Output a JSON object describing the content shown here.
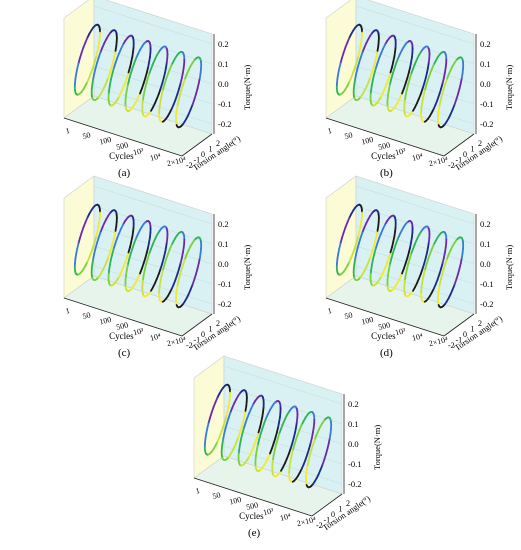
{
  "colors": {
    "back_wall_left": "#fbfbd6",
    "back_wall_right": "#d9f1f2",
    "floor": "#e7f4ec",
    "axis": "#222222",
    "loop_palette": [
      "#1b1b1b",
      "#1c2a8a",
      "#6b2aa8",
      "#3a7ad8",
      "#2fb35a",
      "#79d23a",
      "#c9e23a",
      "#f0ea30"
    ]
  },
  "chart_data": [
    {
      "type": "line",
      "panel_label": "(a)",
      "chart_subtype": "3d-hysteresis-loops",
      "xlabel": "Cycles",
      "ylabel": "Torsion angle(°)",
      "zlabel": "Torque(N·m)",
      "x_ticks": [
        "1",
        "50",
        "100",
        "500",
        "10³",
        "10⁴",
        "2×10⁴"
      ],
      "y_ticks": [
        "-2",
        "-1",
        "0",
        "1",
        "2"
      ],
      "z_ticks": [
        "-0.2",
        "-0.1",
        "0.0",
        "0.1",
        "0.2"
      ],
      "zlim": [
        -0.25,
        0.25
      ],
      "ylim": [
        -2,
        2
      ],
      "series": [
        {
          "x": "1",
          "torque_range": [
            -0.2,
            0.2
          ]
        },
        {
          "x": "50",
          "torque_range": [
            -0.2,
            0.2
          ]
        },
        {
          "x": "100",
          "torque_range": [
            -0.2,
            0.2
          ]
        },
        {
          "x": "500",
          "torque_range": [
            -0.2,
            0.2
          ]
        },
        {
          "x": "10³",
          "torque_range": [
            -0.2,
            0.2
          ]
        },
        {
          "x": "10⁴",
          "torque_range": [
            -0.2,
            0.2
          ]
        },
        {
          "x": "2×10⁴",
          "torque_range": [
            -0.2,
            0.2
          ]
        }
      ]
    },
    {
      "type": "line",
      "panel_label": "(b)",
      "chart_subtype": "3d-hysteresis-loops",
      "xlabel": "Cycles",
      "ylabel": "Torsion angle(°)",
      "zlabel": "Torque(N·m)",
      "x_ticks": [
        "1",
        "50",
        "100",
        "500",
        "10³",
        "10⁴",
        "2×10⁴"
      ],
      "y_ticks": [
        "-2",
        "-1",
        "0",
        "1",
        "2"
      ],
      "z_ticks": [
        "-0.2",
        "-0.1",
        "0.0",
        "0.1",
        "0.2"
      ],
      "zlim": [
        -0.25,
        0.25
      ],
      "ylim": [
        -2,
        2
      ],
      "series": [
        {
          "x": "1",
          "torque_range": [
            -0.2,
            0.2
          ]
        },
        {
          "x": "50",
          "torque_range": [
            -0.2,
            0.2
          ]
        },
        {
          "x": "100",
          "torque_range": [
            -0.2,
            0.2
          ]
        },
        {
          "x": "500",
          "torque_range": [
            -0.2,
            0.2
          ]
        },
        {
          "x": "10³",
          "torque_range": [
            -0.2,
            0.2
          ]
        },
        {
          "x": "10⁴",
          "torque_range": [
            -0.2,
            0.2
          ]
        },
        {
          "x": "2×10⁴",
          "torque_range": [
            -0.2,
            0.2
          ]
        }
      ]
    },
    {
      "type": "line",
      "panel_label": "(c)",
      "chart_subtype": "3d-hysteresis-loops",
      "xlabel": "Cycles",
      "ylabel": "Torsion angle(°)",
      "zlabel": "Torque(N·m)",
      "x_ticks": [
        "1",
        "50",
        "100",
        "500",
        "10³",
        "10⁴",
        "2×10⁴"
      ],
      "y_ticks": [
        "-2",
        "-1",
        "0",
        "1",
        "2"
      ],
      "z_ticks": [
        "-0.2",
        "-0.1",
        "0.0",
        "0.1",
        "0.2"
      ],
      "zlim": [
        -0.25,
        0.25
      ],
      "ylim": [
        -2,
        2
      ],
      "series": [
        {
          "x": "1",
          "torque_range": [
            -0.2,
            0.2
          ]
        },
        {
          "x": "50",
          "torque_range": [
            -0.2,
            0.2
          ]
        },
        {
          "x": "100",
          "torque_range": [
            -0.2,
            0.2
          ]
        },
        {
          "x": "500",
          "torque_range": [
            -0.2,
            0.2
          ]
        },
        {
          "x": "10³",
          "torque_range": [
            -0.2,
            0.2
          ]
        },
        {
          "x": "10⁴",
          "torque_range": [
            -0.2,
            0.2
          ]
        },
        {
          "x": "2×10⁴",
          "torque_range": [
            -0.2,
            0.2
          ]
        }
      ]
    },
    {
      "type": "line",
      "panel_label": "(d)",
      "chart_subtype": "3d-hysteresis-loops",
      "xlabel": "Cycles",
      "ylabel": "Torsion angle(°)",
      "zlabel": "Torque(N·m)",
      "x_ticks": [
        "1",
        "50",
        "100",
        "500",
        "10³",
        "10⁴",
        "2×10⁴"
      ],
      "y_ticks": [
        "-2",
        "-1",
        "0",
        "1",
        "2"
      ],
      "z_ticks": [
        "-0.2",
        "-0.1",
        "0.0",
        "0.1",
        "0.2"
      ],
      "zlim": [
        -0.25,
        0.25
      ],
      "ylim": [
        -2,
        2
      ],
      "series": [
        {
          "x": "1",
          "torque_range": [
            -0.2,
            0.2
          ]
        },
        {
          "x": "50",
          "torque_range": [
            -0.2,
            0.2
          ]
        },
        {
          "x": "100",
          "torque_range": [
            -0.2,
            0.2
          ]
        },
        {
          "x": "500",
          "torque_range": [
            -0.2,
            0.2
          ]
        },
        {
          "x": "10³",
          "torque_range": [
            -0.2,
            0.2
          ]
        },
        {
          "x": "10⁴",
          "torque_range": [
            -0.2,
            0.2
          ]
        },
        {
          "x": "2×10⁴",
          "torque_range": [
            -0.2,
            0.2
          ]
        }
      ]
    },
    {
      "type": "line",
      "panel_label": "(e)",
      "chart_subtype": "3d-hysteresis-loops",
      "xlabel": "Cycles",
      "ylabel": "Torsion angle(°)",
      "zlabel": "Torque(N·m)",
      "x_ticks": [
        "1",
        "50",
        "100",
        "500",
        "10³",
        "10⁴",
        "2×10⁴"
      ],
      "y_ticks": [
        "-2",
        "-1",
        "0",
        "1",
        "2"
      ],
      "z_ticks": [
        "-0.2",
        "-0.1",
        "0.0",
        "0.1",
        "0.2"
      ],
      "zlim": [
        -0.25,
        0.25
      ],
      "ylim": [
        -2,
        2
      ],
      "series": [
        {
          "x": "1",
          "torque_range": [
            -0.2,
            0.2
          ]
        },
        {
          "x": "50",
          "torque_range": [
            -0.2,
            0.2
          ]
        },
        {
          "x": "100",
          "torque_range": [
            -0.2,
            0.2
          ]
        },
        {
          "x": "500",
          "torque_range": [
            -0.2,
            0.2
          ]
        },
        {
          "x": "10³",
          "torque_range": [
            -0.2,
            0.2
          ]
        },
        {
          "x": "10⁴",
          "torque_range": [
            -0.2,
            0.2
          ]
        },
        {
          "x": "2×10⁴",
          "torque_range": [
            -0.2,
            0.2
          ]
        }
      ]
    }
  ]
}
